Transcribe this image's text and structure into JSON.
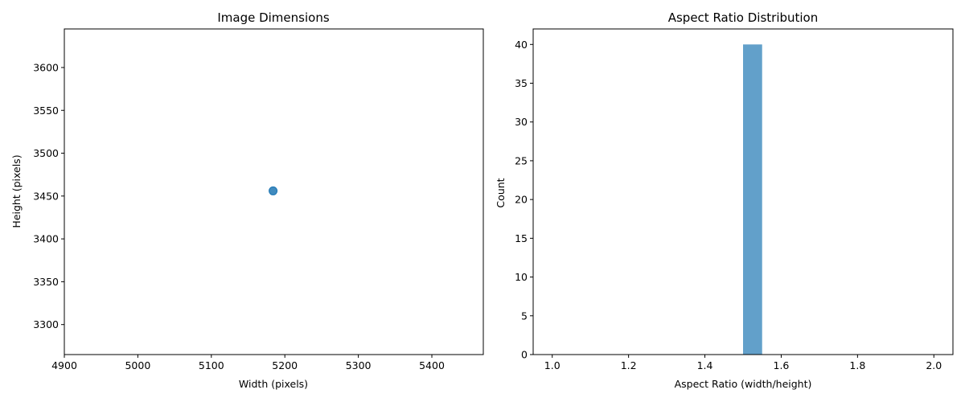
{
  "chart_data": [
    {
      "type": "scatter",
      "title": "Image Dimensions",
      "xlabel": "Width (pixels)",
      "ylabel": "Height (pixels)",
      "xlim": [
        4900,
        5470
      ],
      "ylim": [
        3265,
        3645
      ],
      "xticks": [
        4900,
        5000,
        5100,
        5200,
        5300,
        5400
      ],
      "yticks": [
        3300,
        3350,
        3400,
        3450,
        3500,
        3550,
        3600
      ],
      "grid": false,
      "color": "#1f77b4",
      "points": [
        {
          "x": 5184,
          "y": 3456
        }
      ]
    },
    {
      "type": "bar",
      "title": "Aspect Ratio Distribution",
      "xlabel": "Aspect Ratio (width/height)",
      "ylabel": "Count",
      "xlim": [
        0.95,
        2.05
      ],
      "ylim": [
        0,
        42
      ],
      "xticks": [
        1.0,
        1.2,
        1.4,
        1.6,
        1.8,
        2.0
      ],
      "yticks": [
        0,
        5,
        10,
        15,
        20,
        25,
        30,
        35,
        40
      ],
      "grid": false,
      "color": "#1f77b4",
      "bins": [
        {
          "start": 1.5,
          "end": 1.55,
          "count": 40
        }
      ]
    }
  ]
}
